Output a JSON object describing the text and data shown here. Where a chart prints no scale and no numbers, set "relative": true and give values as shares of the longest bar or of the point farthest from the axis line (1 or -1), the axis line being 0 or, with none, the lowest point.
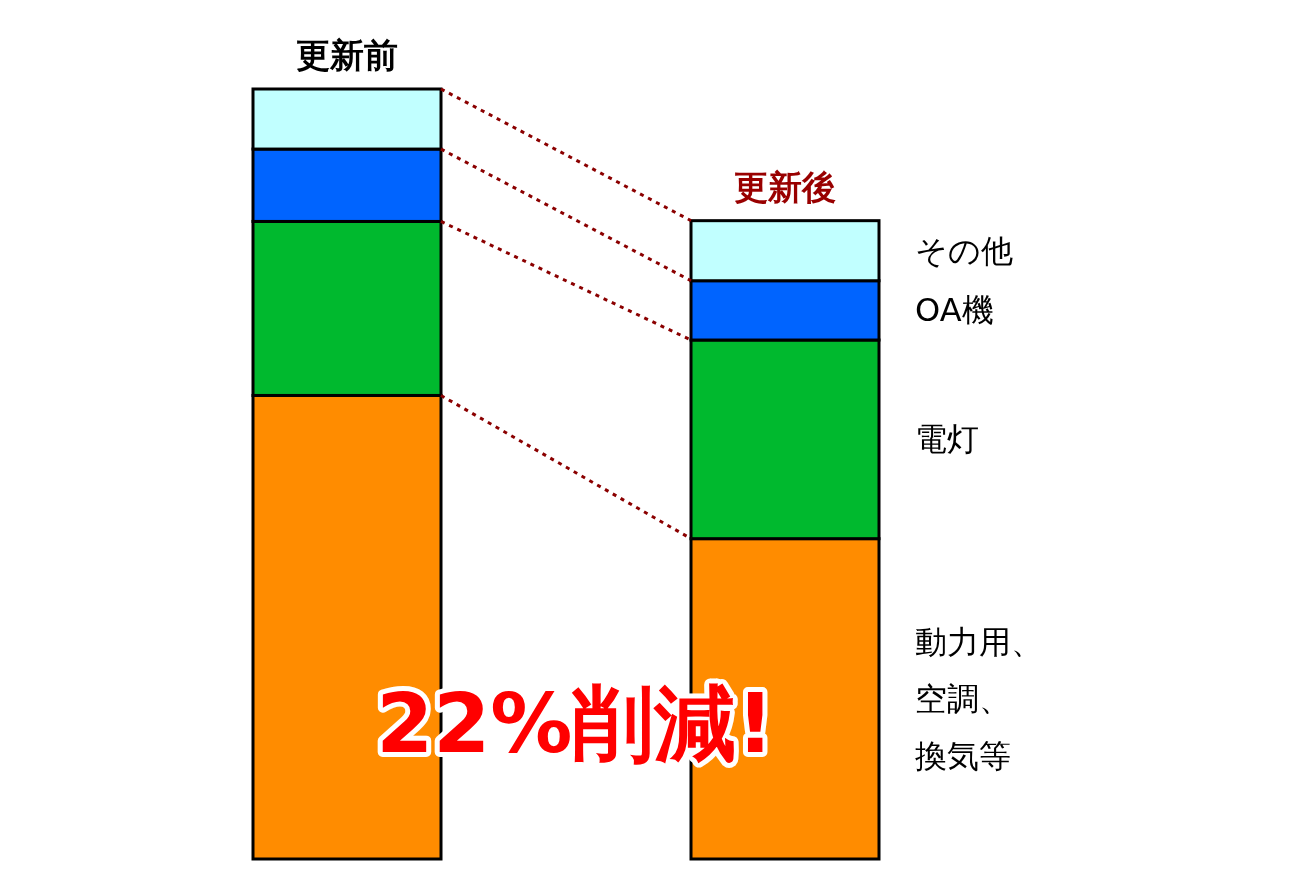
{
  "chart_data": {
    "type": "bar",
    "stacked": true,
    "relative": true,
    "categories": [
      "更新前",
      "更新後"
    ],
    "series": [
      {
        "name": "動力用、空調、換気等",
        "color": "#ff8c00",
        "values": [
          0.602,
          0.416
        ]
      },
      {
        "name": "電灯",
        "color": "#00b92e",
        "values": [
          0.226,
          0.258
        ]
      },
      {
        "name": "OA機",
        "color": "#0064ff",
        "values": [
          0.094,
          0.077
        ]
      },
      {
        "name": "その他",
        "color": "#c1ffff",
        "values": [
          0.078,
          0.078
        ]
      }
    ],
    "annotations": [
      "22%削減!"
    ],
    "legend": false
  }
}
